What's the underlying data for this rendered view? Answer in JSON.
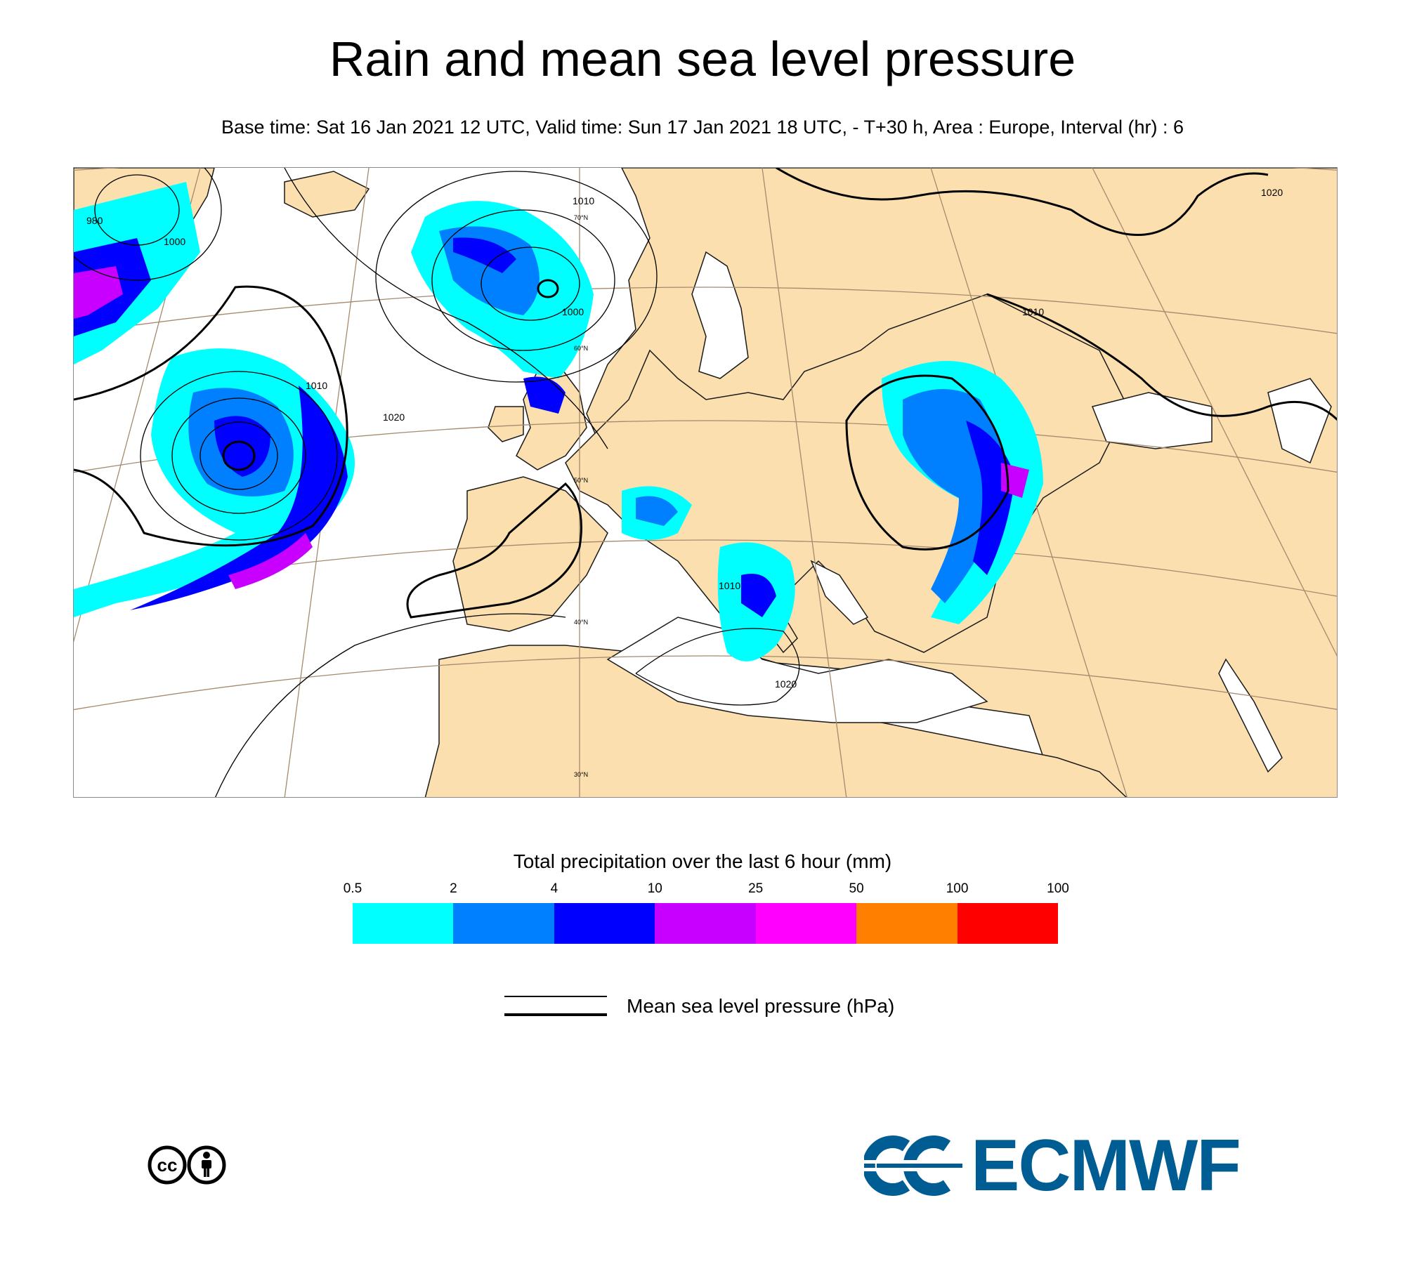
{
  "title": "Rain and mean sea level pressure",
  "subtitle": "Base time: Sat 16 Jan 2021 12 UTC, Valid time: Sun 17 Jan 2021 18 UTC, - T+30 h, Area : Europe, Interval (hr) : 6",
  "map": {
    "area": "Europe",
    "isobar_labels": [
      "1010",
      "1000",
      "980",
      "1000",
      "1010",
      "1020",
      "1010",
      "1020",
      "1010",
      "1020"
    ],
    "latitude_labels": [
      "70°N",
      "60°N",
      "50°N",
      "40°N",
      "30°N"
    ],
    "colors": {
      "land": "#fcdfaf",
      "sea": "#ffffff",
      "graticule": "#a58a6e",
      "isobar": "#000000"
    }
  },
  "legend": {
    "precip_title": "Total precipitation over the last 6 hour (mm)",
    "tick_labels": [
      "0.5",
      "2",
      "4",
      "10",
      "25",
      "50",
      "100",
      "100"
    ],
    "colors": [
      "#00ffff",
      "#0080ff",
      "#0000ff",
      "#c800ff",
      "#ff00ff",
      "#ff8000",
      "#ff0000"
    ],
    "pressure_label": "Mean sea level pressure (hPa)"
  },
  "footer": {
    "license_icon": "cc-by-icon",
    "logo_text": "ECMWF",
    "logo_color": "#005d94"
  }
}
